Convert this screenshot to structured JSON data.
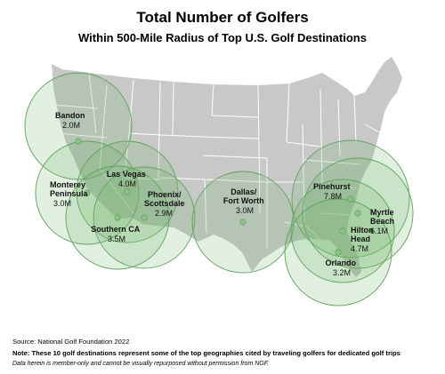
{
  "title": "Total Number of Golfers",
  "subtitle": "Within 500-Mile Radius of Top U.S. Golf Destinations",
  "footer": {
    "source": "Source: National Golf Foundation 2022",
    "note": "Note: These 10 golf destinations represent some of the top geographies cited by traveling golfers for dedicated golf trips",
    "disclaimer": "Data herein is member-only and cannot be visually repurposed without permission from NGF."
  },
  "colors": {
    "map_fill": "#c8c8c8",
    "state_border": "#ffffff",
    "circle_fill": "#6fb36a",
    "circle_stroke": "#5fa35a",
    "marker": "#8cc487"
  },
  "destinations": [
    {
      "name_lines": [
        "Bandon"
      ],
      "value": "2.0M"
    },
    {
      "name_lines": [
        "Monterey",
        "Peninsula"
      ],
      "value": "3.0M"
    },
    {
      "name_lines": [
        "Las Vegas"
      ],
      "value": "4.0M"
    },
    {
      "name_lines": [
        "Phoenix/",
        "Scottsdale"
      ],
      "value": "2.9M"
    },
    {
      "name_lines": [
        "Southern CA"
      ],
      "value": "3.5M"
    },
    {
      "name_lines": [
        "Dallas/",
        "Fort Worth"
      ],
      "value": "3.0M"
    },
    {
      "name_lines": [
        "Pinehurst"
      ],
      "value": "7.8M"
    },
    {
      "name_lines": [
        "Myrtle",
        "Beach"
      ],
      "value": "6.1M"
    },
    {
      "name_lines": [
        "Hilton",
        "Head"
      ],
      "value": "4.7M"
    },
    {
      "name_lines": [
        "Orlando"
      ],
      "value": "3.2M"
    }
  ]
}
